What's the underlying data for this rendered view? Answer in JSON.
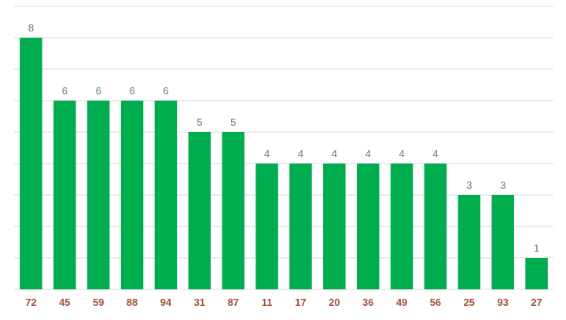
{
  "chart_data": {
    "type": "bar",
    "categories": [
      "72",
      "45",
      "59",
      "88",
      "94",
      "31",
      "87",
      "11",
      "17",
      "20",
      "36",
      "49",
      "56",
      "25",
      "93",
      "27"
    ],
    "values": [
      8,
      6,
      6,
      6,
      6,
      5,
      5,
      4,
      4,
      4,
      4,
      4,
      4,
      3,
      3,
      1
    ],
    "title": "",
    "xlabel": "",
    "ylabel": "",
    "ylim": [
      0,
      9
    ],
    "grid": true,
    "bar_color": "#00ad4e",
    "value_label_color": "#5a7a8f",
    "category_label_color": "#a0523a"
  }
}
